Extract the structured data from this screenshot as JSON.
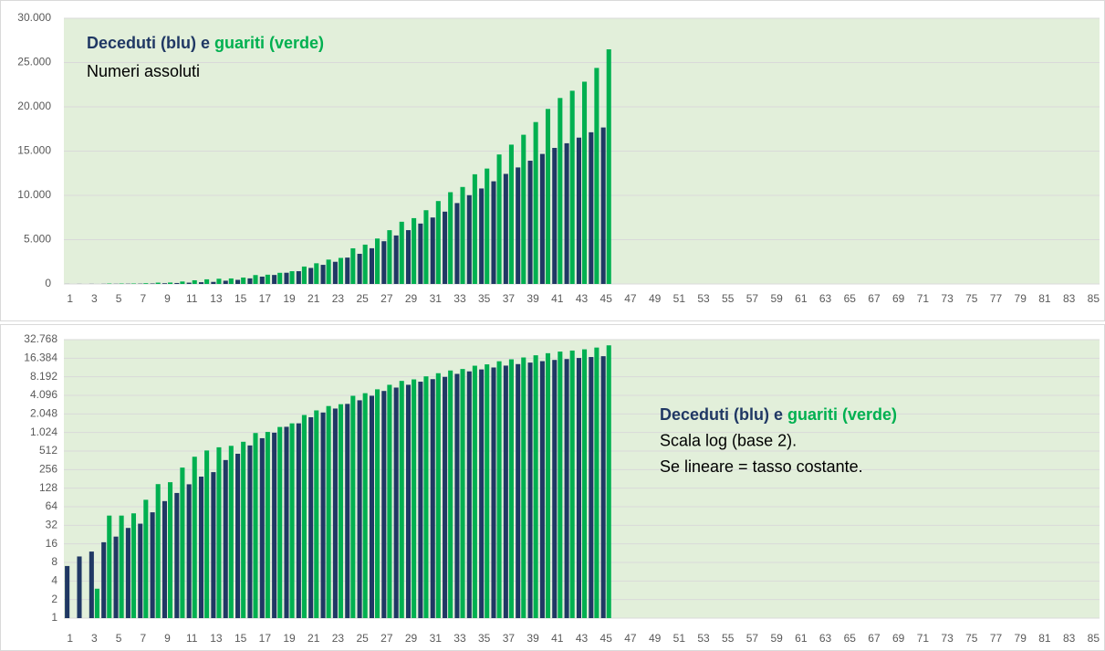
{
  "chart_data": [
    {
      "type": "bar",
      "title": [
        "Deceduti (blu)",
        "e",
        "guariti (verde)"
      ],
      "subtitle": [
        "Numeri assoluti"
      ],
      "categories": [
        1,
        null,
        3,
        null,
        5,
        null,
        7,
        null,
        9,
        null,
        11,
        null,
        13,
        null,
        15,
        null,
        17,
        null,
        19,
        null,
        21,
        null,
        23,
        null,
        25,
        null,
        27,
        null,
        29,
        null,
        31,
        null,
        33,
        null,
        35,
        null,
        37,
        null,
        39,
        null,
        41,
        null,
        43,
        null,
        45,
        null,
        47,
        null,
        49,
        null,
        51,
        null,
        53,
        null,
        55,
        null,
        57,
        null,
        59,
        null,
        61,
        null,
        63,
        null,
        65,
        null,
        67,
        null,
        69,
        null,
        71,
        null,
        73,
        null,
        75,
        null,
        77,
        null,
        79,
        null,
        81,
        null,
        83,
        null,
        85
      ],
      "series": [
        {
          "name": "Deceduti",
          "color": "#203864",
          "values": [
            7,
            10,
            12,
            17,
            21,
            29,
            34,
            52,
            79,
            107,
            148,
            197,
            233,
            366,
            463,
            631,
            827,
            1016,
            1266,
            1441,
            1809,
            2158,
            2503,
            2978,
            3405,
            4032,
            4825,
            5476,
            6077,
            6820,
            7503,
            8165,
            9134,
            10023,
            10779,
            11591,
            12428,
            13155,
            13915,
            14681,
            15362,
            15887,
            16523,
            17127,
            17669,
            null,
            null,
            null,
            null,
            null,
            null,
            null,
            null,
            null,
            null,
            null,
            null,
            null,
            null,
            null,
            null,
            null,
            null,
            null,
            null,
            null,
            null,
            null,
            null,
            null,
            null,
            null,
            null,
            null,
            null,
            null,
            null,
            null,
            null,
            null,
            null,
            null,
            null,
            null,
            null
          ]
        },
        {
          "name": "Guariti",
          "color": "#00b050",
          "values": [
            1,
            1,
            3,
            46,
            46,
            50,
            83,
            149,
            160,
            276,
            414,
            523,
            589,
            622,
            724,
            1004,
            1045,
            1258,
            1439,
            1966,
            2335,
            2749,
            2941,
            4025,
            4440,
            5129,
            6072,
            7024,
            7432,
            8326,
            9362,
            10361,
            10950,
            12384,
            13030,
            14620,
            15729,
            16847,
            18278,
            19758,
            20996,
            21815,
            22837,
            24392,
            26491,
            null,
            null,
            null,
            null,
            null,
            null,
            null,
            null,
            null,
            null,
            null,
            null,
            null,
            null,
            null,
            null,
            null,
            null,
            null,
            null,
            null,
            null,
            null,
            null,
            null,
            null,
            null,
            null,
            null,
            null,
            null,
            null,
            null,
            null,
            null,
            null,
            null,
            null,
            null,
            null
          ]
        }
      ],
      "ylim": [
        0,
        30000
      ],
      "yticks": [
        0,
        {
          "value": 5000,
          "label": "5.000"
        },
        {
          "value": 10000,
          "label": "10.000"
        },
        {
          "value": 15000,
          "label": "15.000"
        },
        {
          "value": 20000,
          "label": "20.000"
        },
        {
          "value": 25000,
          "label": "25.000"
        },
        {
          "value": 30000,
          "label": "30.000"
        }
      ],
      "grid": true,
      "background": "#e2efda"
    },
    {
      "type": "bar",
      "title": [
        "Deceduti (blu)",
        "e",
        "guariti (verde)"
      ],
      "subtitle": [
        "Scala log (base 2).",
        "Se lineare = tasso costante."
      ],
      "yscale": "log",
      "log_base": 2,
      "categories": [
        1,
        null,
        3,
        null,
        5,
        null,
        7,
        null,
        9,
        null,
        11,
        null,
        13,
        null,
        15,
        null,
        17,
        null,
        19,
        null,
        21,
        null,
        23,
        null,
        25,
        null,
        27,
        null,
        29,
        null,
        31,
        null,
        33,
        null,
        35,
        null,
        37,
        null,
        39,
        null,
        41,
        null,
        43,
        null,
        45,
        null,
        47,
        null,
        49,
        null,
        51,
        null,
        53,
        null,
        55,
        null,
        57,
        null,
        59,
        null,
        61,
        null,
        63,
        null,
        65,
        null,
        67,
        null,
        69,
        null,
        71,
        null,
        73,
        null,
        75,
        null,
        77,
        null,
        79,
        null,
        81,
        null,
        83,
        null,
        85
      ],
      "series": [
        {
          "name": "Deceduti",
          "color": "#203864",
          "values": [
            7,
            10,
            12,
            17,
            21,
            29,
            34,
            52,
            79,
            107,
            148,
            197,
            233,
            366,
            463,
            631,
            827,
            1016,
            1266,
            1441,
            1809,
            2158,
            2503,
            2978,
            3405,
            4032,
            4825,
            5476,
            6077,
            6820,
            7503,
            8165,
            9134,
            10023,
            10779,
            11591,
            12428,
            13155,
            13915,
            14681,
            15362,
            15887,
            16523,
            17127,
            17669,
            null,
            null,
            null,
            null,
            null,
            null,
            null,
            null,
            null,
            null,
            null,
            null,
            null,
            null,
            null,
            null,
            null,
            null,
            null,
            null,
            null,
            null,
            null,
            null,
            null,
            null,
            null,
            null,
            null,
            null,
            null,
            null,
            null,
            null,
            null,
            null,
            null,
            null,
            null,
            null
          ]
        },
        {
          "name": "Guariti",
          "color": "#00b050",
          "values": [
            1,
            1,
            3,
            46,
            46,
            50,
            83,
            149,
            160,
            276,
            414,
            523,
            589,
            622,
            724,
            1004,
            1045,
            1258,
            1439,
            1966,
            2335,
            2749,
            2941,
            4025,
            4440,
            5129,
            6072,
            7024,
            7432,
            8326,
            9362,
            10361,
            10950,
            12384,
            13030,
            14620,
            15729,
            16847,
            18278,
            19758,
            20996,
            21815,
            22837,
            24392,
            26491,
            null,
            null,
            null,
            null,
            null,
            null,
            null,
            null,
            null,
            null,
            null,
            null,
            null,
            null,
            null,
            null,
            null,
            null,
            null,
            null,
            null,
            null,
            null,
            null,
            null,
            null,
            null,
            null,
            null,
            null,
            null,
            null,
            null,
            null,
            null,
            null,
            null,
            null,
            null,
            null
          ]
        }
      ],
      "ylim": [
        1,
        32768
      ],
      "yticks": [
        1,
        2,
        4,
        8,
        16,
        32,
        64,
        128,
        256,
        512,
        {
          "value": 1024,
          "label": "1.024"
        },
        {
          "value": 2048,
          "label": "2.048"
        },
        {
          "value": 4096,
          "label": "4.096"
        },
        {
          "value": 8192,
          "label": "8.192"
        },
        {
          "value": 16384,
          "label": "16.384"
        },
        {
          "value": 32768,
          "label": "32.768"
        }
      ],
      "grid": true,
      "background": "#e2efda"
    }
  ]
}
